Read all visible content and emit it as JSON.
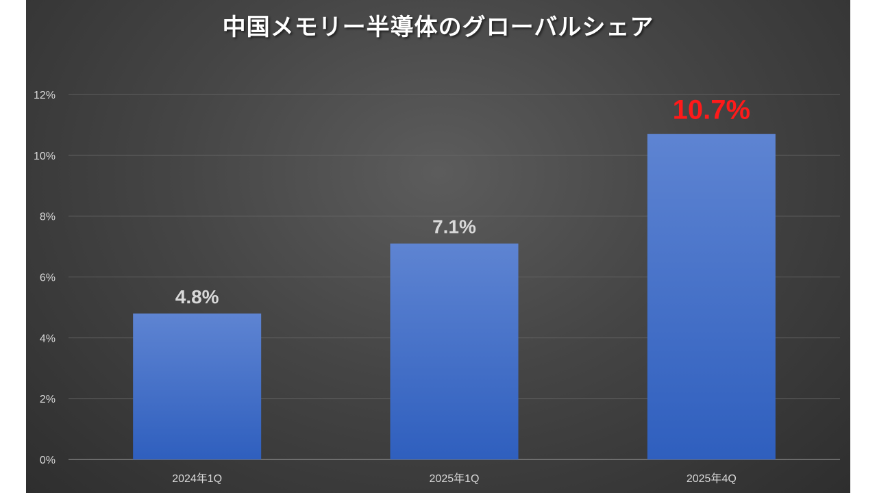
{
  "chart_data": {
    "type": "bar",
    "title": "中国メモリー半導体のグローバルシェア",
    "categories": [
      "2024年1Q",
      "2025年1Q",
      "2025年4Q"
    ],
    "values": [
      4.8,
      7.1,
      10.7
    ],
    "data_labels": [
      "4.8%",
      "7.1%",
      "10.7%"
    ],
    "highlight_index": 2,
    "ylim": [
      0,
      12
    ],
    "yticks": [
      0,
      2,
      4,
      6,
      8,
      10,
      12
    ],
    "ytick_labels": [
      "0%",
      "2%",
      "4%",
      "6%",
      "8%",
      "10%",
      "12%"
    ],
    "grid": true,
    "xlabel": "",
    "ylabel": "",
    "colors": {
      "bar_top": "#5e84d2",
      "bar_bottom": "#2f5fbe",
      "label_normal": "#d9d9d9",
      "label_highlight": "#ff1a1a",
      "grid": "#6a6a6a",
      "axis": "#8c8c8c"
    }
  }
}
